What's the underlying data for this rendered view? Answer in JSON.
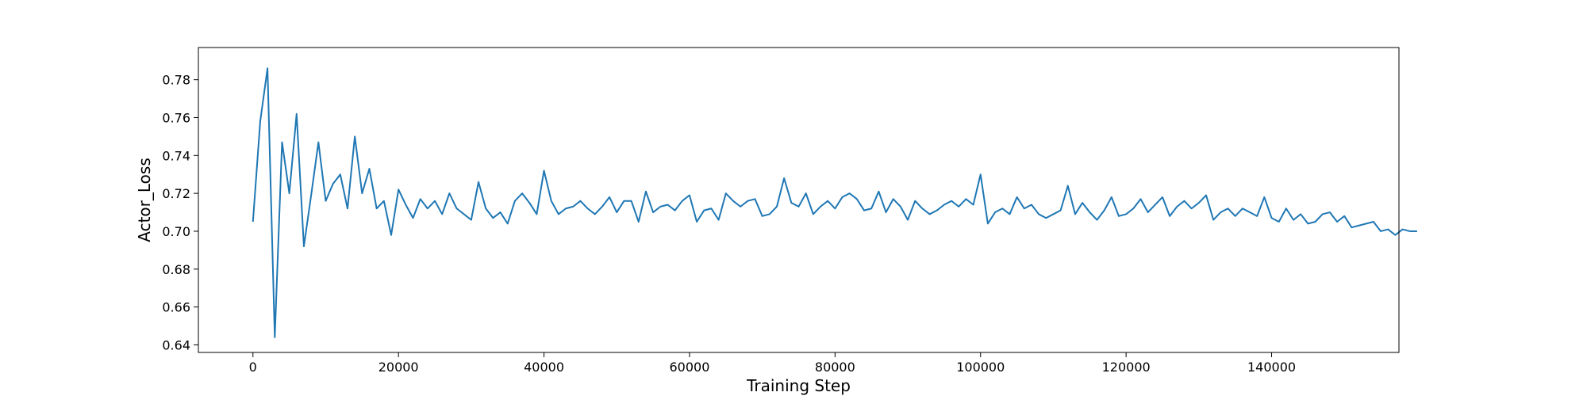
{
  "chart_data": {
    "type": "line",
    "title": "",
    "xlabel": "Training Step",
    "ylabel": "Actor_Loss",
    "xlim": [
      -7500,
      157500
    ],
    "ylim": [
      0.636,
      0.797
    ],
    "x_ticks": [
      0,
      20000,
      40000,
      60000,
      80000,
      100000,
      120000,
      140000
    ],
    "x_tick_labels": [
      "0",
      "20000",
      "40000",
      "60000",
      "80000",
      "100000",
      "120000",
      "140000"
    ],
    "y_ticks": [
      0.64,
      0.66,
      0.68,
      0.7,
      0.72,
      0.74,
      0.76,
      0.78
    ],
    "y_tick_labels": [
      "0.64",
      "0.66",
      "0.68",
      "0.70",
      "0.72",
      "0.74",
      "0.76",
      "0.78"
    ],
    "grid": false,
    "legend": "none",
    "series": [
      {
        "name": "Actor_Loss",
        "color": "#1f77b4",
        "x_start": 0,
        "x_step": 1000,
        "values": [
          0.705,
          0.758,
          0.786,
          0.644,
          0.747,
          0.72,
          0.762,
          0.692,
          0.719,
          0.747,
          0.716,
          0.725,
          0.73,
          0.712,
          0.75,
          0.72,
          0.733,
          0.712,
          0.716,
          0.698,
          0.722,
          0.714,
          0.707,
          0.717,
          0.712,
          0.716,
          0.709,
          0.72,
          0.712,
          0.709,
          0.706,
          0.726,
          0.712,
          0.707,
          0.71,
          0.704,
          0.716,
          0.72,
          0.715,
          0.709,
          0.732,
          0.716,
          0.709,
          0.712,
          0.713,
          0.716,
          0.712,
          0.709,
          0.713,
          0.718,
          0.71,
          0.716,
          0.716,
          0.705,
          0.721,
          0.71,
          0.713,
          0.714,
          0.711,
          0.716,
          0.719,
          0.705,
          0.711,
          0.712,
          0.706,
          0.72,
          0.716,
          0.713,
          0.716,
          0.717,
          0.708,
          0.709,
          0.713,
          0.728,
          0.715,
          0.713,
          0.72,
          0.709,
          0.713,
          0.716,
          0.712,
          0.718,
          0.72,
          0.717,
          0.711,
          0.712,
          0.721,
          0.71,
          0.717,
          0.713,
          0.706,
          0.716,
          0.712,
          0.709,
          0.711,
          0.714,
          0.716,
          0.713,
          0.717,
          0.714,
          0.73,
          0.704,
          0.71,
          0.712,
          0.709,
          0.718,
          0.712,
          0.714,
          0.709,
          0.707,
          0.709,
          0.711,
          0.724,
          0.709,
          0.715,
          0.71,
          0.706,
          0.711,
          0.718,
          0.708,
          0.709,
          0.712,
          0.717,
          0.71,
          0.714,
          0.718,
          0.708,
          0.713,
          0.716,
          0.712,
          0.715,
          0.719,
          0.706,
          0.71,
          0.712,
          0.708,
          0.712,
          0.71,
          0.708,
          0.718,
          0.707,
          0.705,
          0.712,
          0.706,
          0.709,
          0.704,
          0.705,
          0.709,
          0.71,
          0.705,
          0.708,
          0.702,
          0.703,
          0.704,
          0.705,
          0.7,
          0.701,
          0.698,
          0.701,
          0.7,
          0.7
        ]
      }
    ]
  }
}
